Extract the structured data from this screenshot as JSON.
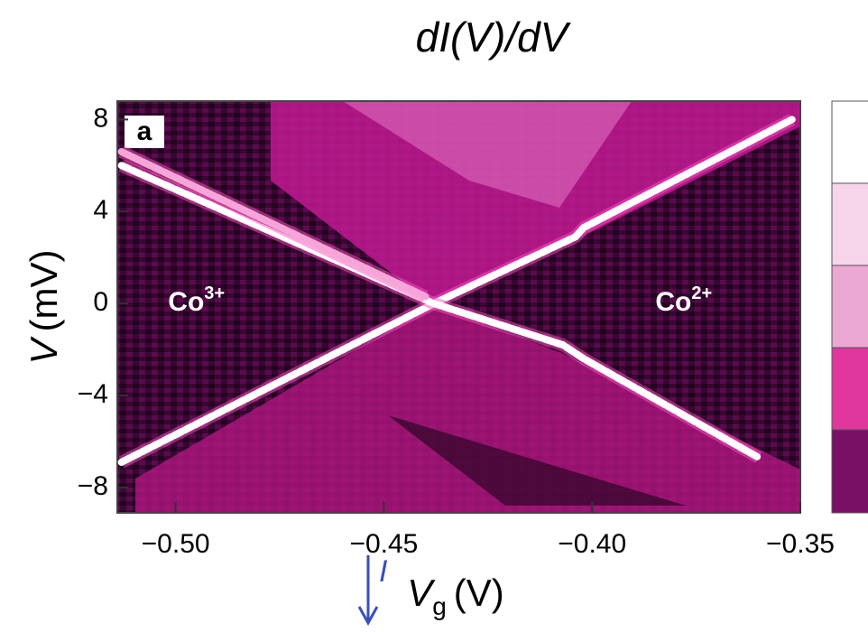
{
  "chart_data": {
    "type": "line",
    "title": "dI(V)/dV",
    "panel_label": "a",
    "xlabel": {
      "symbol": "V",
      "subscript": "g",
      "unit": "(V)"
    },
    "ylabel": {
      "symbol": "V",
      "unit": "(mV)"
    },
    "current_label": "I",
    "annotations": [
      {
        "text": "Co",
        "superscript": "3+",
        "x": -0.495,
        "y": 0
      },
      {
        "text": "Co",
        "superscript": "2+",
        "x": -0.378,
        "y": 0
      }
    ],
    "xlim": [
      -0.514,
      -0.35
    ],
    "xticks": [
      {
        "value": -0.5,
        "label": "−0.50"
      },
      {
        "value": -0.45,
        "label": "−0.45"
      },
      {
        "value": -0.4,
        "label": "−0.40"
      },
      {
        "value": -0.35,
        "label": "−0.35"
      }
    ],
    "ylim": [
      -9.1,
      8.8
    ],
    "yticks": [
      {
        "value": -8,
        "label": "−8"
      },
      {
        "value": -4,
        "label": "−4"
      },
      0,
      4,
      8
    ],
    "series": [
      {
        "color": "#ffffff",
        "x": [
          -0.513,
          -0.438,
          -0.404,
          -0.402,
          -0.352
        ],
        "values": [
          -6.9,
          0,
          2.9,
          3.3,
          8.0
        ]
      },
      {
        "color": "#ffffff",
        "x": [
          -0.513,
          -0.438,
          -0.407,
          -0.402,
          -0.36
        ],
        "values": [
          6.0,
          0,
          -1.8,
          -2.4,
          -6.7
        ]
      },
      {
        "color": "#f5a6d8",
        "x": [
          -0.513,
          -0.44
        ],
        "values": [
          6.6,
          0.3
        ]
      }
    ]
  }
}
